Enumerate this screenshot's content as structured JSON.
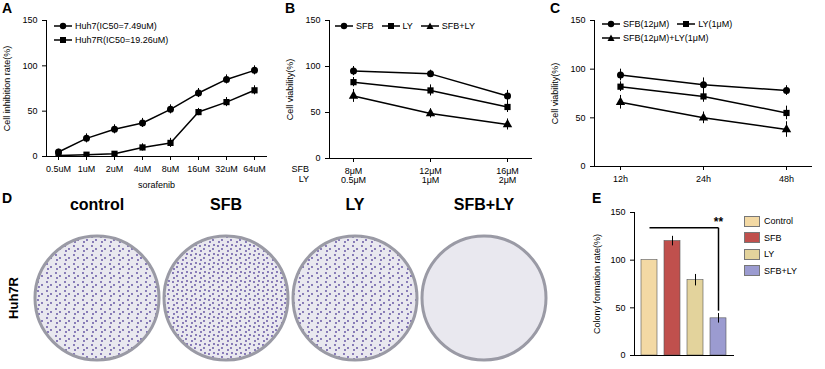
{
  "chart_data": [
    {
      "panel": "A",
      "type": "line",
      "x_label": "sorafenib",
      "y_label": "Cell inhibition rate(%)",
      "categories": [
        "0.5uM",
        "1uM",
        "2uM",
        "4uM",
        "8uM",
        "16uM",
        "32uM",
        "64uM"
      ],
      "series": [
        {
          "name": "Huh7(IC50=7.49uM)",
          "color": "#000000",
          "marker": "circle",
          "values": [
            5,
            20,
            30,
            37,
            52,
            70,
            85,
            95
          ],
          "errors": [
            3,
            5,
            5,
            5,
            5,
            5,
            5,
            5
          ]
        },
        {
          "name": "Huh7R(IC50=19.26uM)",
          "color": "#000000",
          "marker": "square",
          "values": [
            1,
            2,
            3,
            10,
            15,
            49,
            60,
            73
          ],
          "errors": [
            1,
            1,
            1,
            4,
            5,
            4,
            5,
            5
          ]
        }
      ],
      "ylim": [
        0,
        150
      ],
      "yticks": [
        0,
        50,
        100,
        150
      ],
      "legend": "top-left"
    },
    {
      "panel": "B",
      "type": "line",
      "y_label": "Cell viability(%)",
      "x_rows": [
        {
          "name": "SFB",
          "labels": [
            "8μM",
            "12μM",
            "16μM"
          ]
        },
        {
          "name": "LY",
          "labels": [
            "0.5μM",
            "1μM",
            "2μM"
          ]
        }
      ],
      "series": [
        {
          "name": "SFB",
          "color": "#000000",
          "marker": "circle",
          "values": [
            95,
            92,
            68
          ],
          "errors": [
            5,
            4,
            6
          ]
        },
        {
          "name": "LY",
          "color": "#000000",
          "marker": "square",
          "values": [
            83,
            74,
            56
          ],
          "errors": [
            5,
            6,
            6
          ]
        },
        {
          "name": "SFB+LY",
          "color": "#000000",
          "marker": "triangle",
          "values": [
            68,
            49,
            37
          ],
          "errors": [
            7,
            5,
            6
          ]
        }
      ],
      "ylim": [
        0,
        150
      ],
      "yticks": [
        0,
        50,
        100,
        150
      ],
      "legend": "top"
    },
    {
      "panel": "C",
      "type": "line",
      "y_label": "Cell viability(%)",
      "categories": [
        "12h",
        "24h",
        "48h"
      ],
      "series": [
        {
          "name": "SFB(12μM)",
          "color": "#000000",
          "marker": "circle",
          "values": [
            94,
            84,
            78
          ],
          "errors": [
            6,
            7,
            5
          ]
        },
        {
          "name": "LY(1μM)",
          "color": "#000000",
          "marker": "square",
          "values": [
            82,
            72,
            55
          ],
          "errors": [
            5,
            6,
            7
          ]
        },
        {
          "name": "SFB(12μM)+LY(1μM)",
          "color": "#000000",
          "marker": "triangle",
          "values": [
            66,
            50,
            38
          ],
          "errors": [
            7,
            6,
            8
          ]
        }
      ],
      "ylim": [
        0,
        150
      ],
      "yticks": [
        0,
        50,
        100,
        150
      ],
      "legend": "top"
    },
    {
      "panel": "D",
      "type": "image",
      "row_label": "Huh7R",
      "columns": [
        "control",
        "SFB",
        "LY",
        "SFB+LY"
      ]
    },
    {
      "panel": "E",
      "type": "bar",
      "y_label": "Colony formation rate(%)",
      "categories": [
        "Control",
        "SFB",
        "LY",
        "SFB+LY"
      ],
      "values": [
        100,
        120,
        79,
        39
      ],
      "errors": [
        0,
        5,
        6,
        5
      ],
      "colors": [
        "#f3d9a4",
        "#c0504d",
        "#e3d39c",
        "#9b9bd0"
      ],
      "ylim": [
        0,
        150
      ],
      "yticks": [
        0,
        50,
        100,
        150
      ],
      "tick_labels": "y",
      "legend": "right",
      "annotations": [
        {
          "text": "**",
          "from": "Control",
          "to": "SFB+LY"
        }
      ]
    }
  ]
}
